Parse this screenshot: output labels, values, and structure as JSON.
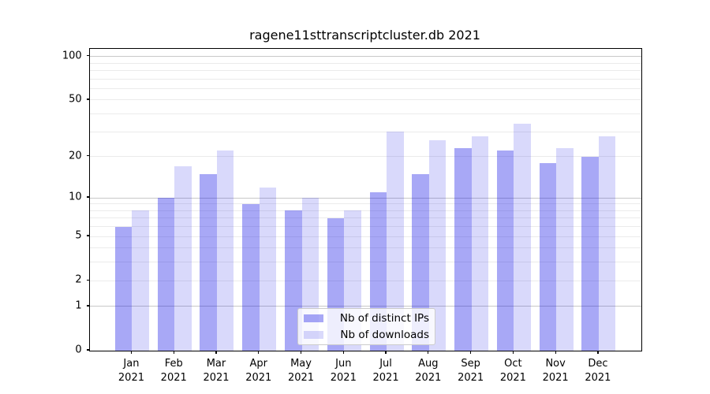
{
  "title": "ragene11sttranscriptcluster.db 2021",
  "colors": {
    "bar_base": "#0000e6",
    "bar_ips_alpha": 0.34,
    "bar_downloads_alpha": 0.15,
    "grid_major": "#c8c8c8",
    "grid_minor": "#ebebeb",
    "axis_line": "#000000",
    "legend_border": "#cccccc"
  },
  "legend": {
    "entries": [
      "Nb of distinct IPs",
      "Nb of downloads"
    ]
  },
  "chart_data": {
    "type": "bar",
    "title": "ragene11sttranscriptcluster.db 2021",
    "categories": [
      "Jan 2021",
      "Feb 2021",
      "Mar 2021",
      "Apr 2021",
      "May 2021",
      "Jun 2021",
      "Jul 2021",
      "Aug 2021",
      "Sep 2021",
      "Oct 2021",
      "Nov 2021",
      "Dec 2021"
    ],
    "series": [
      {
        "name": "Nb of distinct IPs",
        "values": [
          6,
          10,
          15,
          9,
          8,
          7,
          11,
          15,
          23,
          22,
          18,
          20
        ]
      },
      {
        "name": "Nb of downloads",
        "values": [
          8,
          17,
          22,
          12,
          10,
          8,
          30,
          26,
          28,
          34,
          23,
          28
        ]
      }
    ],
    "xlabel": "",
    "ylabel": "",
    "yscale": "log1p",
    "ylim": [
      0,
      112.8
    ],
    "yticks": [
      0,
      1,
      2,
      5,
      10,
      20,
      50,
      100
    ],
    "major_gridlines": [
      1,
      10,
      100
    ],
    "minor_gridlines": [
      2,
      3,
      4,
      5,
      6,
      7,
      8,
      9,
      20,
      30,
      40,
      50,
      60,
      70,
      80,
      90
    ],
    "grid": "on",
    "legend_position": "lower center"
  }
}
